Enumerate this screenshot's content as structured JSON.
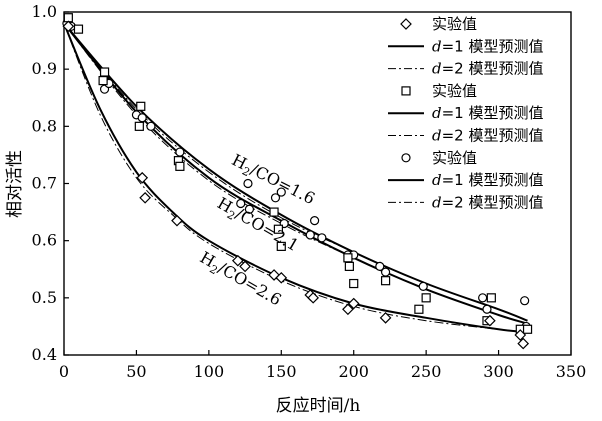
{
  "chart_data": {
    "type": "scatter",
    "xlabel": "反应时间/h",
    "ylabel": "相对活性",
    "xlim": [
      0,
      350
    ],
    "ylim": [
      0.4,
      1.0
    ],
    "xticks": [
      0,
      50,
      100,
      150,
      200,
      250,
      300,
      350
    ],
    "yticks": [
      0.4,
      0.5,
      0.6,
      0.7,
      0.8,
      0.9,
      1.0
    ],
    "grid": false,
    "legend_position": "top-right",
    "series": [
      {
        "name": "实验值",
        "group": "H2/CO=1.6",
        "marker": "circle",
        "points": [
          [
            2,
            0.98
          ],
          [
            5,
            0.975
          ],
          [
            28,
            0.865
          ],
          [
            31,
            0.875
          ],
          [
            50,
            0.82
          ],
          [
            54,
            0.815
          ],
          [
            60,
            0.8
          ],
          [
            80,
            0.755
          ],
          [
            122,
            0.665
          ],
          [
            127,
            0.7
          ],
          [
            128,
            0.655
          ],
          [
            146,
            0.675
          ],
          [
            150,
            0.685
          ],
          [
            152,
            0.63
          ],
          [
            170,
            0.61
          ],
          [
            173,
            0.635
          ],
          [
            178,
            0.605
          ],
          [
            196,
            0.575
          ],
          [
            200,
            0.575
          ],
          [
            218,
            0.555
          ],
          [
            222,
            0.545
          ],
          [
            248,
            0.52
          ],
          [
            289,
            0.5
          ],
          [
            292,
            0.48
          ],
          [
            318,
            0.495
          ],
          [
            319,
            0.45
          ]
        ],
        "model_d1": [
          [
            0,
            0.98
          ],
          [
            50,
            0.835
          ],
          [
            100,
            0.725
          ],
          [
            150,
            0.645
          ],
          [
            200,
            0.58
          ],
          [
            250,
            0.525
          ],
          [
            300,
            0.48
          ],
          [
            320,
            0.46
          ]
        ],
        "model_d2": [
          [
            0,
            0.98
          ],
          [
            50,
            0.83
          ],
          [
            100,
            0.72
          ],
          [
            150,
            0.64
          ],
          [
            200,
            0.58
          ],
          [
            250,
            0.525
          ],
          [
            300,
            0.48
          ],
          [
            320,
            0.46
          ]
        ]
      },
      {
        "name": "实验值",
        "group": "H2/CO=2.1",
        "marker": "square",
        "points": [
          [
            3,
            0.99
          ],
          [
            10,
            0.97
          ],
          [
            27,
            0.88
          ],
          [
            28,
            0.895
          ],
          [
            52,
            0.8
          ],
          [
            53,
            0.835
          ],
          [
            79,
            0.74
          ],
          [
            80,
            0.73
          ],
          [
            145,
            0.65
          ],
          [
            148,
            0.62
          ],
          [
            150,
            0.59
          ],
          [
            196,
            0.57
          ],
          [
            197,
            0.555
          ],
          [
            200,
            0.525
          ],
          [
            222,
            0.53
          ],
          [
            245,
            0.48
          ],
          [
            250,
            0.5
          ],
          [
            292,
            0.46
          ],
          [
            295,
            0.5
          ],
          [
            315,
            0.445
          ],
          [
            320,
            0.445
          ]
        ],
        "model_d1": [
          [
            0,
            0.98
          ],
          [
            50,
            0.825
          ],
          [
            100,
            0.71
          ],
          [
            150,
            0.635
          ],
          [
            200,
            0.57
          ],
          [
            250,
            0.515
          ],
          [
            300,
            0.47
          ],
          [
            320,
            0.455
          ]
        ],
        "model_d2": [
          [
            0,
            0.98
          ],
          [
            50,
            0.82
          ],
          [
            100,
            0.705
          ],
          [
            150,
            0.63
          ],
          [
            200,
            0.57
          ],
          [
            250,
            0.515
          ],
          [
            300,
            0.47
          ],
          [
            320,
            0.455
          ]
        ]
      },
      {
        "name": "实验值",
        "group": "H2/CO=2.6",
        "marker": "diamond",
        "points": [
          [
            3,
            0.975
          ],
          [
            54,
            0.71
          ],
          [
            56,
            0.675
          ],
          [
            78,
            0.635
          ],
          [
            120,
            0.565
          ],
          [
            125,
            0.555
          ],
          [
            145,
            0.54
          ],
          [
            150,
            0.535
          ],
          [
            170,
            0.505
          ],
          [
            172,
            0.5
          ],
          [
            196,
            0.48
          ],
          [
            200,
            0.49
          ],
          [
            222,
            0.465
          ],
          [
            294,
            0.46
          ],
          [
            315,
            0.435
          ],
          [
            317,
            0.42
          ]
        ],
        "model_d1": [
          [
            0,
            0.98
          ],
          [
            25,
            0.83
          ],
          [
            50,
            0.72
          ],
          [
            75,
            0.65
          ],
          [
            100,
            0.6
          ],
          [
            150,
            0.535
          ],
          [
            200,
            0.49
          ],
          [
            250,
            0.465
          ],
          [
            300,
            0.445
          ],
          [
            320,
            0.44
          ]
        ],
        "model_d2": [
          [
            0,
            0.98
          ],
          [
            25,
            0.82
          ],
          [
            50,
            0.71
          ],
          [
            75,
            0.645
          ],
          [
            100,
            0.595
          ],
          [
            150,
            0.53
          ],
          [
            200,
            0.485
          ],
          [
            250,
            0.46
          ],
          [
            300,
            0.445
          ],
          [
            320,
            0.44
          ]
        ]
      }
    ],
    "curve_labels": [
      {
        "text": "H2/CO=1.6",
        "at": [
          115,
          0.735
        ]
      },
      {
        "text": "H2/CO=2.1",
        "at": [
          105,
          0.66
        ]
      },
      {
        "text": "H2/CO=2.6",
        "at": [
          93,
          0.565
        ]
      }
    ],
    "legend": [
      {
        "marker": "diamond",
        "label": "实验值"
      },
      {
        "line": "solid",
        "label_var": "d",
        "label_val": "=1",
        "label_text": " 模型预测值"
      },
      {
        "line": "dashdot",
        "label_var": "d",
        "label_val": "=2",
        "label_text": " 模型预测值"
      },
      {
        "marker": "square",
        "label": "实验值"
      },
      {
        "line": "solid",
        "label_var": "d",
        "label_val": "=1",
        "label_text": " 模型预测值"
      },
      {
        "line": "dashdot",
        "label_var": "d",
        "label_val": "=2",
        "label_text": " 模型预测值"
      },
      {
        "marker": "circle",
        "label": "实验值"
      },
      {
        "line": "solid",
        "label_var": "d",
        "label_val": "=1",
        "label_text": " 模型预测值"
      },
      {
        "line": "dashdot",
        "label_var": "d",
        "label_val": "=2",
        "label_text": " 模型预测值"
      }
    ]
  }
}
